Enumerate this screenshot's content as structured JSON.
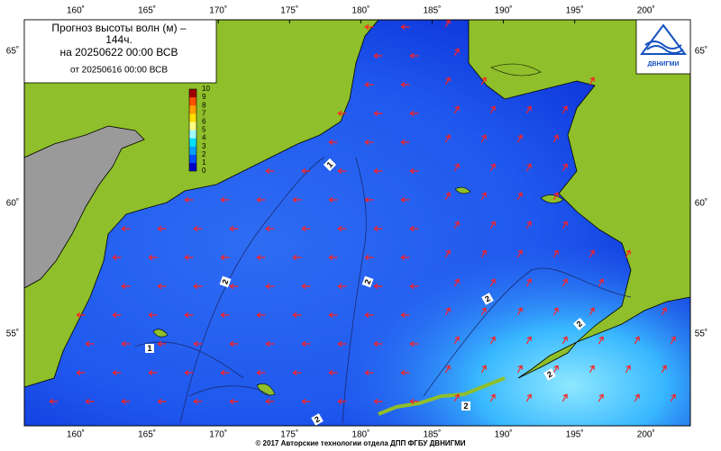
{
  "title": {
    "line1": "Прогноз высоты волн (м) –",
    "line2": "144ч.",
    "line3": "на 20250622 00:00 ВСВ",
    "line4": "от 20250616 00:00 ВСВ"
  },
  "legend": {
    "ticks": [
      0,
      1,
      2,
      3,
      4,
      5,
      6,
      7,
      8,
      9,
      10
    ],
    "colors": [
      "#0000c8",
      "#0050ff",
      "#00a0ff",
      "#00e0ff",
      "#a0ffff",
      "#ffff80",
      "#ffe000",
      "#ffa000",
      "#ff5000",
      "#e00000",
      "#a00000"
    ]
  },
  "longitude_labels": [
    "160˚",
    "165˚",
    "170˚",
    "175˚",
    "180˚",
    "185˚",
    "190˚",
    "195˚",
    "200˚"
  ],
  "latitude_labels": [
    "65˚",
    "60˚",
    "55˚"
  ],
  "contour_labels": [
    "1",
    "2",
    "2",
    "2",
    "1",
    "2",
    "2",
    "2",
    "2"
  ],
  "logo": "ДВНИГМИ",
  "footer": "© 2017 Авторские технологии отдела ДПП ФГБУ ДВНИГМИ"
}
